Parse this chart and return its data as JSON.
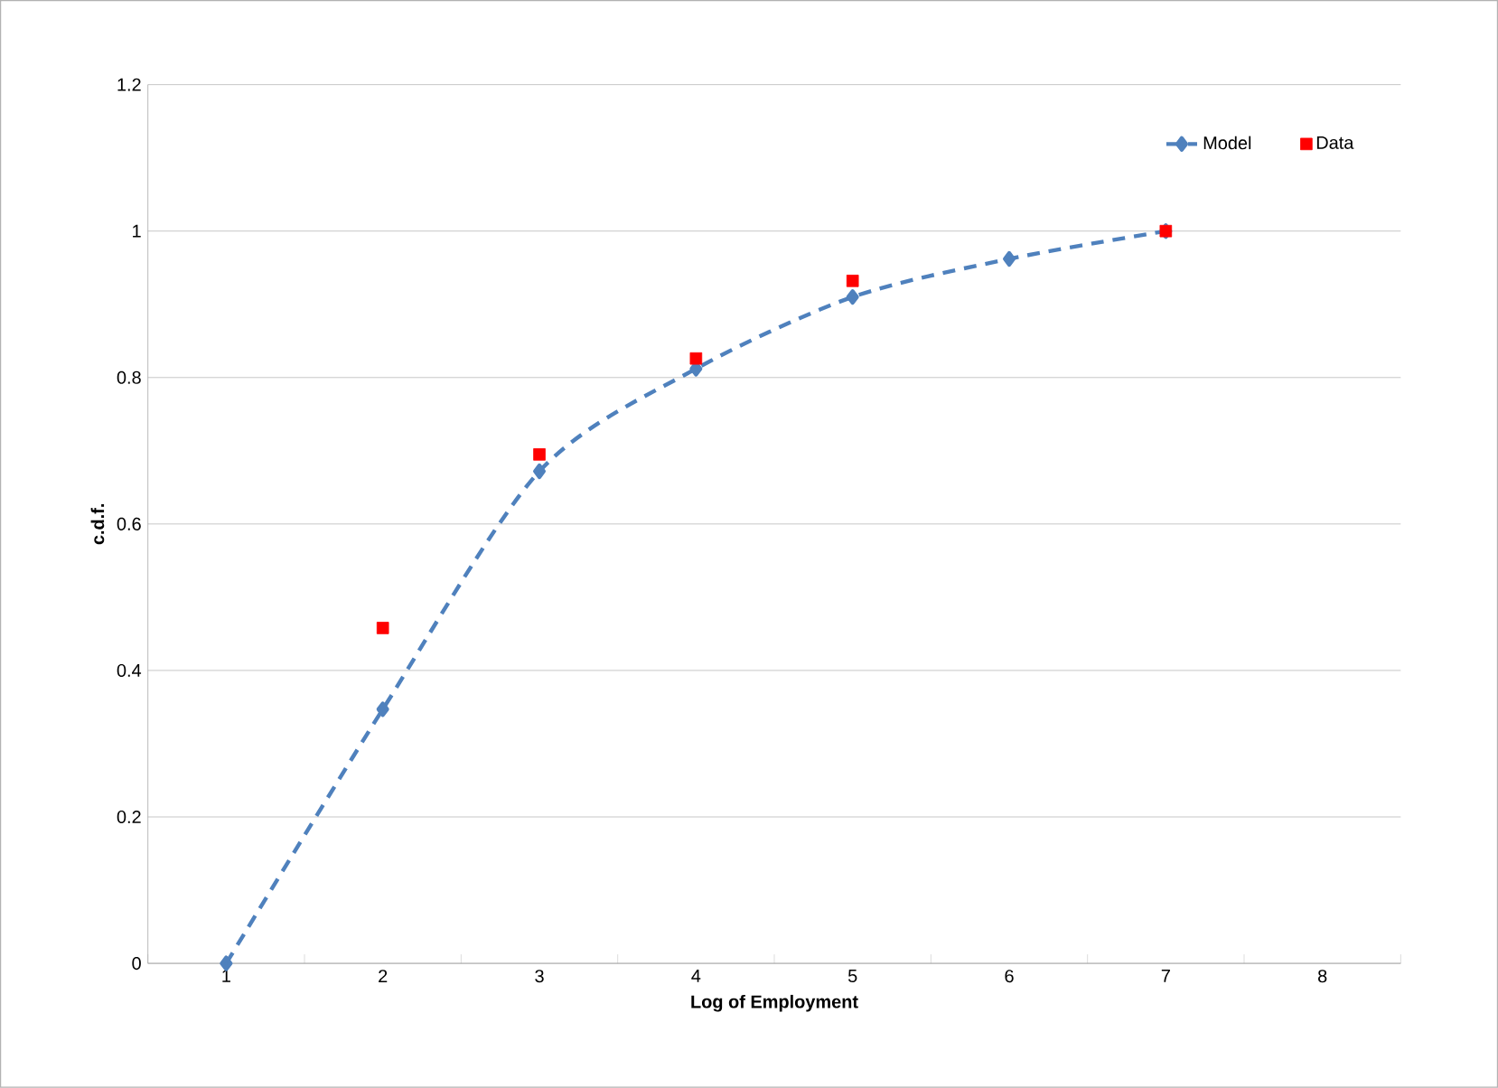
{
  "chart_data": {
    "type": "line",
    "xlabel": "Log of Employment",
    "ylabel": "c.d.f.",
    "categories": [
      "1",
      "2",
      "3",
      "4",
      "5",
      "6",
      "7",
      "8"
    ],
    "ylim": [
      0,
      1.2
    ],
    "yticks": [
      0,
      0.2,
      0.4,
      0.6,
      0.8,
      1,
      1.2
    ],
    "grid": "y",
    "legend": "top right",
    "series": [
      {
        "name": "Model",
        "color": "#4f81bd",
        "marker": "diamond",
        "line_style": "dashed",
        "values": [
          0,
          0.347,
          0.672,
          0.812,
          0.91,
          0.962,
          1.0,
          null
        ]
      },
      {
        "name": "Data",
        "type": "scatter",
        "color": "#ff0000",
        "marker": "square",
        "values": [
          null,
          0.458,
          0.695,
          0.826,
          0.932,
          null,
          1.0,
          null
        ]
      }
    ]
  }
}
